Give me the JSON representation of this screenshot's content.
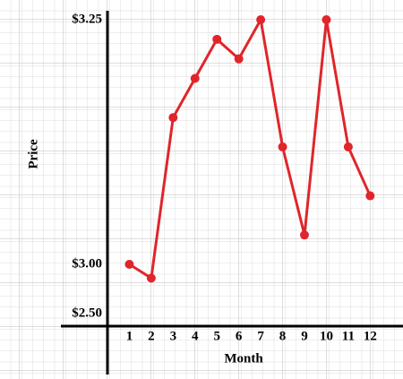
{
  "chart_data": {
    "type": "line",
    "x_label": "Month",
    "y_label": "Price",
    "x": [
      1,
      2,
      3,
      4,
      5,
      6,
      7,
      8,
      9,
      10,
      11,
      12
    ],
    "xlim": [
      0,
      13.5
    ],
    "xticks": [
      1,
      2,
      3,
      4,
      5,
      6,
      7,
      8,
      9,
      10,
      11,
      12
    ],
    "series": [
      {
        "color": "#e0252b",
        "values": [
          3.0,
          2.86,
          3.15,
          3.19,
          3.23,
          3.21,
          3.25,
          3.12,
          3.03,
          3.25,
          3.12,
          3.07
        ]
      }
    ],
    "ylim": [
      2.5,
      3.25
    ],
    "yticks": [
      {
        "value": 2.5,
        "label": "$2.50"
      },
      {
        "value": 3.0,
        "label": "$3.00"
      },
      {
        "value": 3.25,
        "label": "$3.25"
      }
    ],
    "grid": true
  }
}
